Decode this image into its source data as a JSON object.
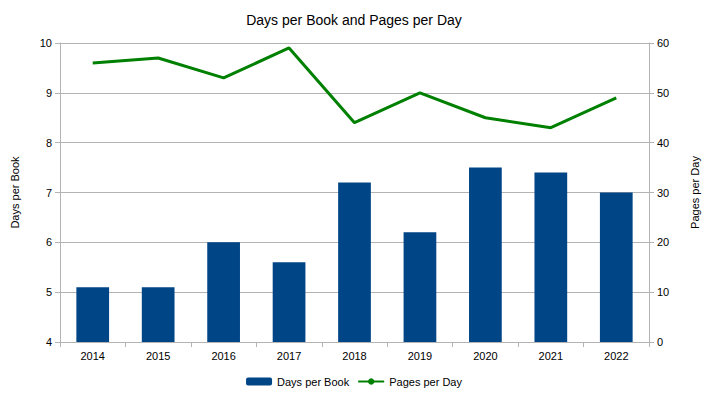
{
  "chart_data": {
    "type": "bar",
    "title": "Days per Book and Pages per Day",
    "ylabel": "Days per Book",
    "y2label": "Pages per Day",
    "categories": [
      "2014",
      "2015",
      "2016",
      "2017",
      "2018",
      "2019",
      "2020",
      "2021",
      "2022"
    ],
    "series": [
      {
        "name": "Days per Book",
        "type": "bar",
        "color": "#004586",
        "values": [
          5.1,
          5.1,
          6.0,
          5.6,
          7.2,
          6.2,
          7.5,
          7.4,
          7.0
        ]
      },
      {
        "name": "Pages per Day",
        "type": "line",
        "color": "#008000",
        "axis": "y2",
        "values": [
          56,
          57,
          53,
          59,
          44,
          50,
          45,
          43,
          49
        ]
      }
    ],
    "ylim": [
      4,
      10
    ],
    "yticks": [
      4,
      5,
      6,
      7,
      8,
      9,
      10
    ],
    "y2lim": [
      0,
      60
    ],
    "y2ticks": [
      0,
      10,
      20,
      30,
      40,
      50,
      60
    ],
    "grid": true,
    "legend": "bottom"
  }
}
